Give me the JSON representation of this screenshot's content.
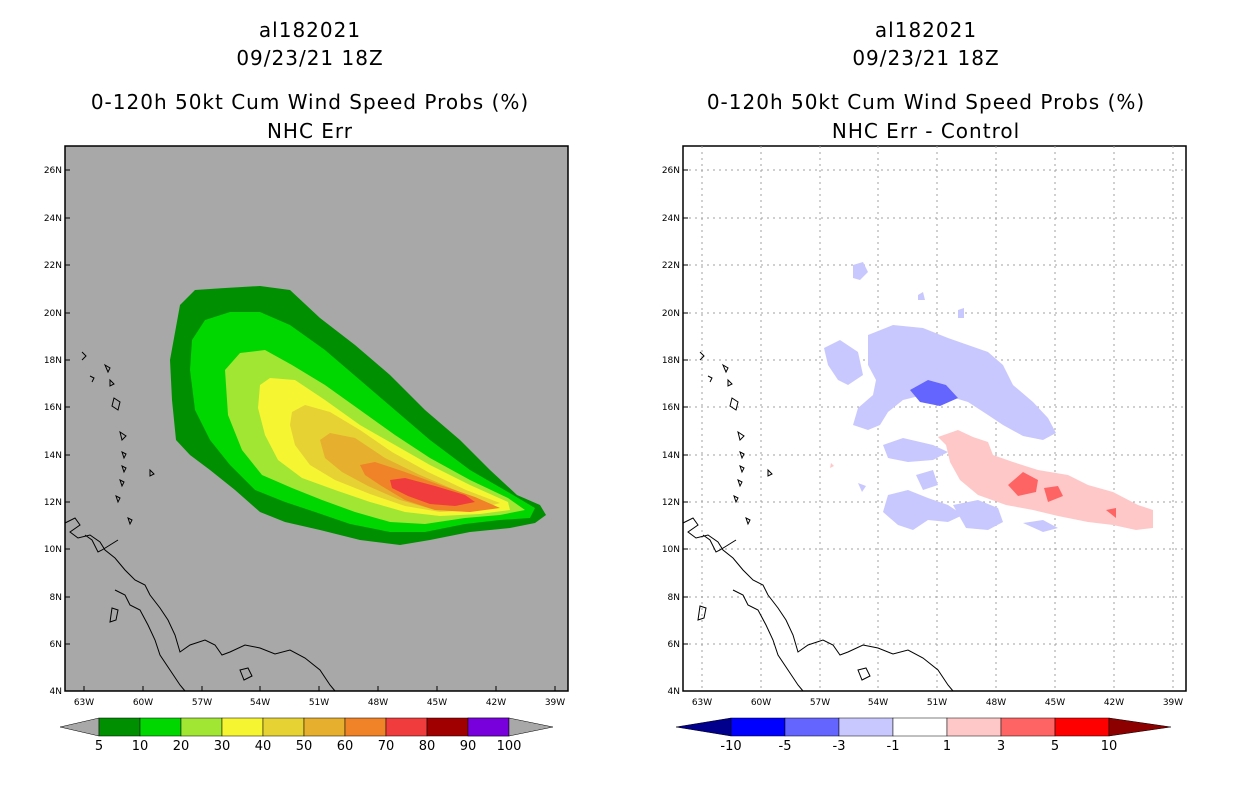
{
  "chart_data": [
    {
      "type": "heatmap",
      "storm_id": "al182021",
      "datetime": "09/23/21 18Z",
      "title": "0-120h 50kt Cum Wind Speed Probs (%)",
      "subtitle": "NHC Err",
      "background_color": "#a8a8a8",
      "x_ticks": [
        "63W",
        "60W",
        "57W",
        "54W",
        "51W",
        "48W",
        "45W",
        "42W",
        "39W"
      ],
      "x_range_deg_west": [
        64,
        38.5
      ],
      "y_ticks": [
        "4N",
        "6N",
        "8N",
        "10N",
        "12N",
        "14N",
        "16N",
        "18N",
        "20N",
        "22N",
        "24N",
        "26N"
      ],
      "y_range_deg_north": [
        4,
        27
      ],
      "colorbar": {
        "labels": [
          "5",
          "10",
          "20",
          "30",
          "40",
          "50",
          "60",
          "70",
          "80",
          "90",
          "100"
        ],
        "colors": [
          "#008f00",
          "#00d600",
          "#a0e632",
          "#f5f532",
          "#e6d232",
          "#e6af2d",
          "#f08228",
          "#f03c3c",
          "#a00000",
          "#820000",
          "#7800dc"
        ]
      },
      "contour_levels_percent": [
        5,
        10,
        20,
        30,
        40,
        50,
        60,
        70
      ],
      "max_region": {
        "label": "70-80",
        "center_lon_w": 45.5,
        "center_lat_n": 12.5
      }
    },
    {
      "type": "heatmap",
      "storm_id": "al182021",
      "datetime": "09/23/21 18Z",
      "title": "0-120h 50kt Cum Wind Speed Probs (%)",
      "subtitle": "NHC Err - Control",
      "grid": true,
      "x_ticks": [
        "63W",
        "60W",
        "57W",
        "54W",
        "51W",
        "48W",
        "45W",
        "42W",
        "39W"
      ],
      "y_ticks": [
        "4N",
        "6N",
        "8N",
        "10N",
        "12N",
        "14N",
        "16N",
        "18N",
        "20N",
        "22N",
        "24N",
        "26N"
      ],
      "colorbar": {
        "labels": [
          "-10",
          "-5",
          "-3",
          "-1",
          "1",
          "3",
          "5",
          "10"
        ],
        "colors": [
          "#00008c",
          "#0000ff",
          "#6464ff",
          "#c8c8ff",
          "#ffffff",
          "#ffc8c8",
          "#ff6464",
          "#ff0000",
          "#8c0000"
        ]
      },
      "negative_region": {
        "label": "-3 to -1",
        "center_lon_w": 52,
        "center_lat_n": 16.5
      },
      "positive_region": {
        "label": "1 to 5",
        "center_lon_w": 44,
        "center_lat_n": 12.5
      }
    }
  ]
}
